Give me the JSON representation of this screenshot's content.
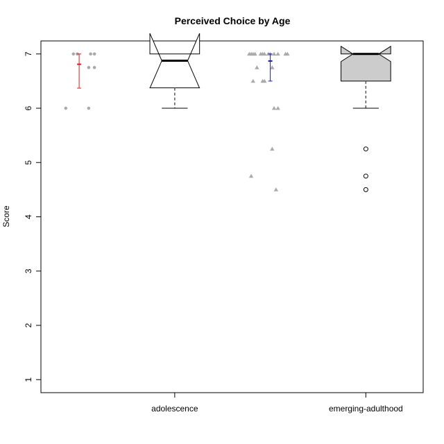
{
  "chart_data": {
    "type": "boxplot",
    "title": "Perceived Choice by Age",
    "xlabel": "",
    "ylabel": "Score",
    "categories": [
      "adolescence",
      "emerging-adulthood"
    ],
    "yticks": [
      1,
      2,
      3,
      4,
      5,
      6,
      7
    ],
    "ylim": [
      0.76,
      7.24
    ],
    "notched": true,
    "grid": false,
    "boxes": [
      {
        "category": "adolescence",
        "min": 6.0,
        "q1": 6.375,
        "median": 6.875,
        "q3": 7.0,
        "max": 7.0,
        "notch_low": 6.37,
        "notch_high": 7.38,
        "outliers": [],
        "fill": "#ffffff"
      },
      {
        "category": "emerging-adulthood",
        "min": 6.0,
        "q1": 6.5,
        "median": 7.0,
        "q3": 7.0,
        "max": 7.0,
        "notch_low": 6.86,
        "notch_high": 7.14,
        "outliers": [
          5.25,
          4.75,
          4.5
        ],
        "fill": "#cccccc"
      }
    ],
    "jitter_points": [
      {
        "category": "adolescence",
        "marker": "circle",
        "color": "#aaaaaa",
        "points": [
          {
            "offset": -0.03,
            "y": 7.0
          },
          {
            "offset": -0.01,
            "y": 7.0
          },
          {
            "offset": 0.06,
            "y": 7.0
          },
          {
            "offset": 0.08,
            "y": 7.0
          },
          {
            "offset": 0.05,
            "y": 6.75
          },
          {
            "offset": 0.08,
            "y": 6.75
          },
          {
            "offset": -0.07,
            "y": 6.0
          },
          {
            "offset": 0.05,
            "y": 6.0
          }
        ]
      },
      {
        "category": "emerging-adulthood",
        "marker": "triangle",
        "color": "#aaaaaa",
        "points": [
          {
            "offset": -0.11,
            "y": 7.0
          },
          {
            "offset": -0.1,
            "y": 7.0
          },
          {
            "offset": -0.09,
            "y": 7.0
          },
          {
            "offset": -0.08,
            "y": 7.0
          },
          {
            "offset": -0.05,
            "y": 7.0
          },
          {
            "offset": -0.04,
            "y": 7.0
          },
          {
            "offset": -0.03,
            "y": 7.0
          },
          {
            "offset": -0.01,
            "y": 7.0
          },
          {
            "offset": 0.0,
            "y": 7.0
          },
          {
            "offset": 0.02,
            "y": 7.0
          },
          {
            "offset": 0.04,
            "y": 7.0
          },
          {
            "offset": 0.08,
            "y": 7.0
          },
          {
            "offset": 0.09,
            "y": 7.0
          },
          {
            "offset": -0.07,
            "y": 6.75
          },
          {
            "offset": 0.01,
            "y": 6.75
          },
          {
            "offset": -0.09,
            "y": 6.5
          },
          {
            "offset": -0.04,
            "y": 6.5
          },
          {
            "offset": -0.03,
            "y": 6.5
          },
          {
            "offset": 0.02,
            "y": 6.0
          },
          {
            "offset": 0.04,
            "y": 6.0
          },
          {
            "offset": 0.01,
            "y": 5.25
          },
          {
            "offset": -0.1,
            "y": 4.75
          },
          {
            "offset": 0.03,
            "y": 4.5
          }
        ]
      }
    ],
    "mean_errorbars": [
      {
        "category": "adolescence",
        "mean": 6.81,
        "low": 6.37,
        "high": 7.0,
        "color": "#e31a1c"
      },
      {
        "category": "emerging-adulthood",
        "mean": 6.87,
        "low": 6.5,
        "high": 7.0,
        "color": "#1a1acc"
      }
    ]
  }
}
